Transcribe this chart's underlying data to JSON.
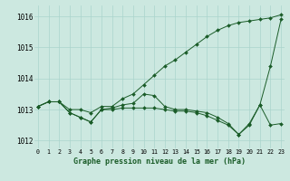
{
  "xlabel": "Graphe pression niveau de la mer (hPa)",
  "x_ticks": [
    0,
    1,
    2,
    3,
    4,
    5,
    6,
    7,
    8,
    9,
    10,
    11,
    12,
    13,
    14,
    15,
    16,
    17,
    18,
    19,
    20,
    21,
    22,
    23
  ],
  "ylim": [
    1011.75,
    1016.35
  ],
  "yticks": [
    1012,
    1013,
    1014,
    1015,
    1016
  ],
  "background_color": "#cce8e0",
  "grid_color": "#aad4cc",
  "line_color": "#1a5c28",
  "series": [
    [
      1013.1,
      1013.25,
      1013.25,
      1013.0,
      1013.0,
      1012.9,
      1013.1,
      1013.1,
      1013.35,
      1013.5,
      1013.8,
      1014.1,
      1014.4,
      1014.6,
      1014.85,
      1015.1,
      1015.35,
      1015.55,
      1015.7,
      1015.8,
      1015.85,
      1015.9,
      1015.95,
      1016.05
    ],
    [
      1013.1,
      1013.25,
      1013.25,
      1012.9,
      1012.75,
      1012.6,
      1013.0,
      1013.05,
      1013.15,
      1013.2,
      1013.5,
      1013.45,
      1013.1,
      1013.0,
      1013.0,
      1012.95,
      1012.9,
      1012.75,
      1012.55,
      1012.2,
      1012.5,
      1013.15,
      1014.4,
      1015.9
    ],
    [
      1013.1,
      1013.25,
      1013.25,
      1012.9,
      1012.75,
      1012.6,
      1013.0,
      1013.0,
      1013.05,
      1013.05,
      1013.05,
      1013.05,
      1013.0,
      1012.95,
      1012.95,
      1012.9,
      1012.8,
      1012.65,
      1012.5,
      1012.2,
      1012.55,
      1013.15,
      1012.5,
      1012.55
    ]
  ]
}
